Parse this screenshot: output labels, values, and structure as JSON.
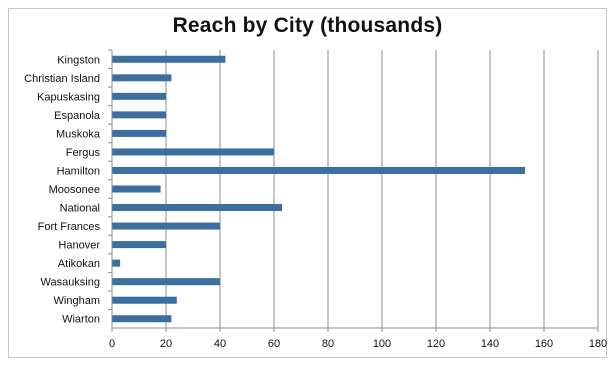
{
  "chart_data": {
    "type": "bar",
    "orientation": "horizontal",
    "title": "Reach by City (thousands)",
    "xlabel": "",
    "ylabel": "",
    "categories": [
      "Kingston",
      "Christian Island",
      "Kapuskasing",
      "Espanola",
      "Muskoka",
      "Fergus",
      "Hamilton",
      "Moosonee",
      "National",
      "Fort Frances",
      "Hanover",
      "Atikokan",
      "Wasauksing",
      "Wingham",
      "Wiarton"
    ],
    "values": [
      42,
      22,
      20,
      20,
      20,
      60,
      153,
      18,
      63,
      40,
      20,
      3,
      40,
      24,
      22
    ],
    "xlim": [
      0,
      180
    ],
    "xticks": [
      0,
      20,
      40,
      60,
      80,
      100,
      120,
      140,
      160,
      180
    ],
    "grid": "vertical",
    "legend": "none",
    "bar_color": "#3c6e9f",
    "grid_color": "#8c8c8c"
  }
}
